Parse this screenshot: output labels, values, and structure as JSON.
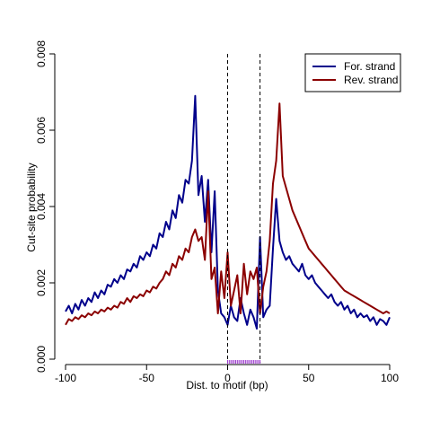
{
  "chart_data": {
    "type": "line",
    "title": "",
    "xlabel": "Dist. to motif (bp)",
    "ylabel": "Cut-site probability",
    "xlim": [
      -100,
      100
    ],
    "ylim": [
      0,
      0.008
    ],
    "x_ticks": [
      -100,
      -50,
      0,
      50,
      100
    ],
    "x_tick_labels": [
      "-100",
      "-50",
      "0",
      "50",
      "100"
    ],
    "y_ticks": [
      0,
      0.002,
      0.004,
      0.006,
      0.008
    ],
    "y_tick_labels": [
      "0.000",
      "0.002",
      "0.004",
      "0.006",
      "0.008"
    ],
    "grid": false,
    "legend_position": "top-right",
    "motif_boundaries": [
      0,
      0
    ],
    "motif_region": [
      0,
      20
    ],
    "motif_color": "#9933cc",
    "x": [
      -100,
      -98,
      -96,
      -94,
      -92,
      -90,
      -88,
      -86,
      -84,
      -82,
      -80,
      -78,
      -76,
      -74,
      -72,
      -70,
      -68,
      -66,
      -64,
      -62,
      -60,
      -58,
      -56,
      -54,
      -52,
      -50,
      -48,
      -46,
      -44,
      -42,
      -40,
      -38,
      -36,
      -34,
      -32,
      -30,
      -28,
      -26,
      -24,
      -22,
      -20,
      -18,
      -16,
      -14,
      -12,
      -10,
      -8,
      -6,
      -4,
      -2,
      0,
      2,
      4,
      6,
      8,
      10,
      12,
      14,
      16,
      18,
      20,
      22,
      24,
      26,
      28,
      30,
      32,
      34,
      36,
      38,
      40,
      42,
      44,
      46,
      48,
      50,
      52,
      54,
      56,
      58,
      60,
      62,
      64,
      66,
      68,
      70,
      72,
      74,
      76,
      78,
      80,
      82,
      84,
      86,
      88,
      90,
      92,
      94,
      96,
      98,
      100
    ],
    "series": [
      {
        "name": "For. strand",
        "color": "#00008b",
        "values": [
          0.00125,
          0.0014,
          0.0012,
          0.00145,
          0.0013,
          0.00155,
          0.0014,
          0.0016,
          0.0015,
          0.00175,
          0.0016,
          0.0018,
          0.0017,
          0.00195,
          0.0019,
          0.0021,
          0.002,
          0.0022,
          0.0021,
          0.00235,
          0.0023,
          0.0025,
          0.0024,
          0.0027,
          0.0026,
          0.0028,
          0.0027,
          0.003,
          0.0029,
          0.0033,
          0.0032,
          0.0036,
          0.0034,
          0.0039,
          0.0037,
          0.0043,
          0.0041,
          0.0047,
          0.0046,
          0.0052,
          0.0069,
          0.0043,
          0.0048,
          0.0036,
          0.0047,
          0.0028,
          0.0044,
          0.0018,
          0.0012,
          0.0011,
          0.0009,
          0.0014,
          0.0011,
          0.001,
          0.0016,
          0.0012,
          0.0009,
          0.0013,
          0.0011,
          0.0008,
          0.0032,
          0.0011,
          0.0013,
          0.0014,
          0.0029,
          0.0042,
          0.0031,
          0.0028,
          0.0026,
          0.0027,
          0.0025,
          0.0024,
          0.0023,
          0.0025,
          0.0022,
          0.0021,
          0.0022,
          0.002,
          0.0019,
          0.0018,
          0.0017,
          0.0016,
          0.0017,
          0.0015,
          0.0014,
          0.0015,
          0.0013,
          0.0014,
          0.0012,
          0.0013,
          0.0011,
          0.0012,
          0.0011,
          0.00115,
          0.001,
          0.0011,
          0.0009,
          0.00105,
          0.001,
          0.0009,
          0.0011
        ]
      },
      {
        "name": "Rev. strand",
        "color": "#8b0000",
        "values": [
          0.0009,
          0.00105,
          0.001,
          0.0011,
          0.00105,
          0.00115,
          0.0011,
          0.0012,
          0.00115,
          0.00125,
          0.0012,
          0.0013,
          0.00125,
          0.00135,
          0.0013,
          0.0014,
          0.00135,
          0.0015,
          0.00145,
          0.0016,
          0.0015,
          0.00165,
          0.0016,
          0.0017,
          0.00165,
          0.0018,
          0.00175,
          0.0019,
          0.00185,
          0.002,
          0.0021,
          0.0023,
          0.0022,
          0.0025,
          0.0024,
          0.0027,
          0.0026,
          0.0029,
          0.0028,
          0.0032,
          0.0034,
          0.0031,
          0.0032,
          0.0026,
          0.0044,
          0.0021,
          0.0024,
          0.0012,
          0.0023,
          0.0016,
          0.0028,
          0.0014,
          0.0018,
          0.0022,
          0.0012,
          0.0025,
          0.0017,
          0.0023,
          0.0021,
          0.0024,
          0.0012,
          0.0019,
          0.0023,
          0.0031,
          0.0046,
          0.0052,
          0.0067,
          0.0048,
          0.0045,
          0.0042,
          0.0039,
          0.0037,
          0.0035,
          0.0033,
          0.0031,
          0.0029,
          0.0028,
          0.0027,
          0.0026,
          0.0025,
          0.0024,
          0.0023,
          0.0022,
          0.0021,
          0.002,
          0.0019,
          0.0018,
          0.00175,
          0.0017,
          0.00165,
          0.0016,
          0.00155,
          0.0015,
          0.00145,
          0.0014,
          0.00135,
          0.0013,
          0.00125,
          0.0012,
          0.00125,
          0.0012
        ]
      }
    ]
  }
}
